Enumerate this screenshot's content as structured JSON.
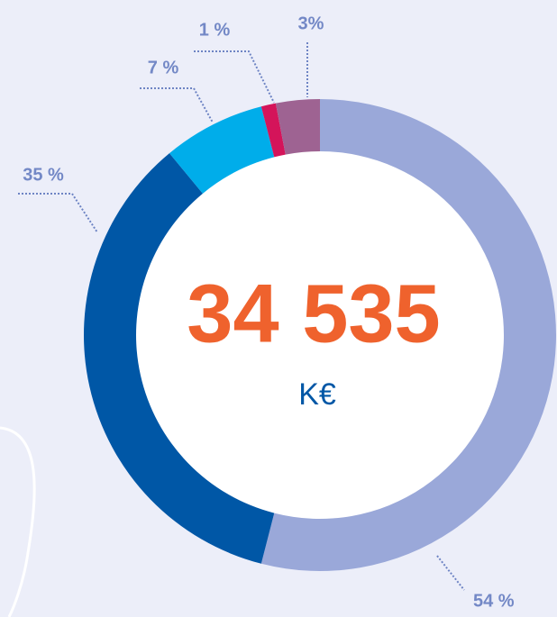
{
  "chart_data": {
    "type": "donut",
    "values": [
      54,
      35,
      7,
      1,
      3
    ],
    "value_labels": [
      "54 %",
      "35 %",
      "7 %",
      "1 %",
      "3%"
    ],
    "colors": [
      "#9aa8d9",
      "#0057a6",
      "#00adea",
      "#d4145a",
      "#9e6392"
    ],
    "center_value": "34 535",
    "center_unit": "K€"
  }
}
